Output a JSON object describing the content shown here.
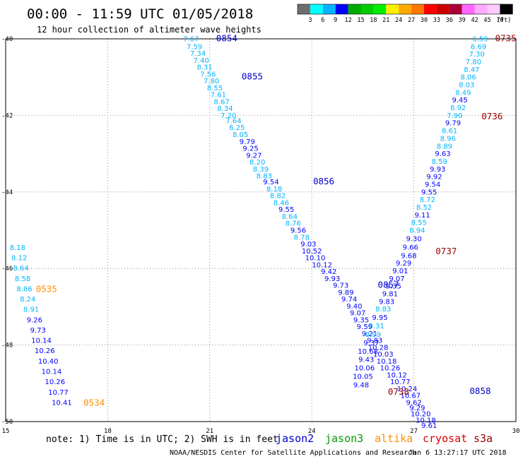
{
  "chart_data": {
    "type": "scatter",
    "title": "00:00 - 11:59 UTC 01/05/2018",
    "subtitle": "12 hour collection of altimeter wave heights",
    "note": "note: 1) Time is in UTC; 2) SWH is in feet",
    "credit": "NOAA/NESDIS Center for Satellite Applications and Research",
    "generated": "Jan  6 13:27:17 UTC 2018",
    "xlim": [
      15,
      30
    ],
    "ylim": [
      -50,
      -40
    ],
    "x_ticks": [
      "15",
      "18",
      "21",
      "24",
      "27",
      "30"
    ],
    "y_ticks": [
      "-40",
      "-42",
      "-44",
      "-46",
      "-48",
      "-50"
    ],
    "grid": true,
    "color_scale": {
      "unit": "(ft)",
      "labels": [
        "3",
        "6",
        "9",
        "12",
        "15",
        "18",
        "21",
        "24",
        "27",
        "30",
        "33",
        "36",
        "39",
        "42",
        "45",
        "70"
      ],
      "colors": [
        "#6e6e6e",
        "#00ffff",
        "#00b4ff",
        "#0000ff",
        "#00aa00",
        "#00cc00",
        "#00ee00",
        "#ffee00",
        "#ffaa00",
        "#ff7700",
        "#ff0000",
        "#cc0000",
        "#aa0033",
        "#ff66ff",
        "#ffaaff",
        "#ffccff",
        "#000000"
      ]
    },
    "legend": [
      {
        "name": "jason2",
        "color": "#0000cc"
      },
      {
        "name": "jason3",
        "color": "#009900"
      },
      {
        "name": "altika",
        "color": "#ff8c00"
      },
      {
        "name": "cryosat",
        "color": "#dd0000"
      },
      {
        "name": "s3a",
        "color": "#990000"
      }
    ],
    "passes": [
      {
        "name": "track-a",
        "points": [
          {
            "lon": 20.45,
            "lat": -40.0,
            "v": "7.67",
            "c": "#00b4ff"
          },
          {
            "lon": 20.55,
            "lat": -40.2,
            "v": "7.59",
            "c": "#00b4ff"
          },
          {
            "lon": 20.65,
            "lat": -40.38,
            "v": "7.34",
            "c": "#00b4ff"
          },
          {
            "lon": 20.75,
            "lat": -40.56,
            "v": "7.40",
            "c": "#00b4ff"
          },
          {
            "lon": 20.85,
            "lat": -40.74,
            "v": "8.31",
            "c": "#00b4ff"
          },
          {
            "lon": 20.95,
            "lat": -40.92,
            "v": "7.56",
            "c": "#00b4ff"
          },
          {
            "lon": 21.05,
            "lat": -41.1,
            "v": "7.80",
            "c": "#00b4ff"
          },
          {
            "lon": 21.15,
            "lat": -41.28,
            "v": "8.55",
            "c": "#00b4ff"
          },
          {
            "lon": 21.25,
            "lat": -41.46,
            "v": "7.61",
            "c": "#00b4ff"
          },
          {
            "lon": 21.35,
            "lat": -41.64,
            "v": "8.67",
            "c": "#00b4ff"
          },
          {
            "lon": 21.45,
            "lat": -41.82,
            "v": "8.34",
            "c": "#00b4ff"
          },
          {
            "lon": 21.55,
            "lat": -42.0,
            "v": "7.20",
            "c": "#00b4ff"
          },
          {
            "lon": 21.7,
            "lat": -42.14,
            "v": "7.64",
            "c": "#00b4ff"
          },
          {
            "lon": 21.8,
            "lat": -42.32,
            "v": "6.25",
            "c": "#00b4ff"
          },
          {
            "lon": 21.9,
            "lat": -42.5,
            "v": "8.05",
            "c": "#00b4ff"
          },
          {
            "lon": 22.1,
            "lat": -42.68,
            "v": "9.79",
            "c": "#0000ff"
          },
          {
            "lon": 22.2,
            "lat": -42.86,
            "v": "9.25",
            "c": "#0000ff"
          },
          {
            "lon": 22.3,
            "lat": -43.04,
            "v": "9.27",
            "c": "#0000ff"
          },
          {
            "lon": 22.4,
            "lat": -43.22,
            "v": "8.20",
            "c": "#00b4ff"
          },
          {
            "lon": 22.5,
            "lat": -43.4,
            "v": "8.39",
            "c": "#00b4ff"
          },
          {
            "lon": 22.6,
            "lat": -43.58,
            "v": "8.83",
            "c": "#00b4ff"
          },
          {
            "lon": 22.8,
            "lat": -43.74,
            "v": "9.54",
            "c": "#0000ff"
          },
          {
            "lon": 22.9,
            "lat": -43.92,
            "v": "8.18",
            "c": "#00b4ff"
          },
          {
            "lon": 23.0,
            "lat": -44.1,
            "v": "8.82",
            "c": "#00b4ff"
          },
          {
            "lon": 23.1,
            "lat": -44.28,
            "v": "8.46",
            "c": "#00b4ff"
          },
          {
            "lon": 23.25,
            "lat": -44.46,
            "v": "9.55",
            "c": "#0000ff"
          },
          {
            "lon": 23.35,
            "lat": -44.64,
            "v": "8.64",
            "c": "#00b4ff"
          },
          {
            "lon": 23.45,
            "lat": -44.82,
            "v": "8.76",
            "c": "#00b4ff"
          },
          {
            "lon": 23.6,
            "lat": -45.0,
            "v": "9.56",
            "c": "#0000ff"
          },
          {
            "lon": 23.7,
            "lat": -45.18,
            "v": "8.78",
            "c": "#00b4ff"
          },
          {
            "lon": 23.9,
            "lat": -45.36,
            "v": "9.03",
            "c": "#0000ff"
          },
          {
            "lon": 24.0,
            "lat": -45.54,
            "v": "10.52",
            "c": "#0000ff"
          },
          {
            "lon": 24.1,
            "lat": -45.72,
            "v": "10.10",
            "c": "#0000ff"
          },
          {
            "lon": 24.3,
            "lat": -45.9,
            "v": "10.12",
            "c": "#0000ff"
          },
          {
            "lon": 24.5,
            "lat": -46.08,
            "v": "9.42",
            "c": "#0000ff"
          },
          {
            "lon": 24.6,
            "lat": -46.26,
            "v": "9.93",
            "c": "#0000ff"
          },
          {
            "lon": 24.85,
            "lat": -46.44,
            "v": "9.73",
            "c": "#0000ff"
          },
          {
            "lon": 25.0,
            "lat": -46.62,
            "v": "9.89",
            "c": "#0000ff"
          },
          {
            "lon": 25.1,
            "lat": -46.8,
            "v": "9.74",
            "c": "#0000ff"
          },
          {
            "lon": 25.25,
            "lat": -46.98,
            "v": "9.40",
            "c": "#0000ff"
          },
          {
            "lon": 25.35,
            "lat": -47.16,
            "v": "9.07",
            "c": "#0000ff"
          },
          {
            "lon": 25.45,
            "lat": -47.34,
            "v": "9.35",
            "c": "#0000ff"
          },
          {
            "lon": 25.55,
            "lat": -47.52,
            "v": "9.59",
            "c": "#0000ff"
          },
          {
            "lon": 25.7,
            "lat": -47.7,
            "v": "9.21",
            "c": "#0000ff"
          },
          {
            "lon": 25.85,
            "lat": -47.88,
            "v": "9.83",
            "c": "#0000ff"
          },
          {
            "lon": 25.95,
            "lat": -48.06,
            "v": "10.28",
            "c": "#0000ff"
          },
          {
            "lon": 26.1,
            "lat": -48.24,
            "v": "10.03",
            "c": "#0000ff"
          },
          {
            "lon": 26.2,
            "lat": -48.42,
            "v": "10.18",
            "c": "#0000ff"
          },
          {
            "lon": 26.3,
            "lat": -48.6,
            "v": "10.26",
            "c": "#0000ff"
          },
          {
            "lon": 26.5,
            "lat": -48.78,
            "v": "10.12",
            "c": "#0000ff"
          },
          {
            "lon": 26.6,
            "lat": -48.96,
            "v": "10.77",
            "c": "#0000ff"
          },
          {
            "lon": 26.8,
            "lat": -49.14,
            "v": "10.24",
            "c": "#0000ff"
          },
          {
            "lon": 26.9,
            "lat": -49.32,
            "v": "10.67",
            "c": "#0000ff"
          },
          {
            "lon": 27.0,
            "lat": -49.5,
            "v": "9.62",
            "c": "#0000ff"
          },
          {
            "lon": 27.1,
            "lat": -49.64,
            "v": "9.29",
            "c": "#0000ff"
          },
          {
            "lon": 27.2,
            "lat": -49.8,
            "v": "10.20",
            "c": "#0000ff"
          },
          {
            "lon": 27.35,
            "lat": -49.96,
            "v": "10.18",
            "c": "#0000ff"
          },
          {
            "lon": 27.45,
            "lat": -50.1,
            "v": "9.61",
            "c": "#0000ff"
          }
        ]
      },
      {
        "name": "track-b",
        "points": [
          {
            "lon": 28.95,
            "lat": -40.0,
            "v": "6.59",
            "c": "#00b4ff"
          },
          {
            "lon": 28.9,
            "lat": -40.2,
            "v": "6.69",
            "c": "#00b4ff"
          },
          {
            "lon": 28.85,
            "lat": -40.4,
            "v": "7.30",
            "c": "#00b4ff"
          },
          {
            "lon": 28.75,
            "lat": -40.6,
            "v": "7.80",
            "c": "#00b4ff"
          },
          {
            "lon": 28.7,
            "lat": -40.8,
            "v": "8.47",
            "c": "#00b4ff"
          },
          {
            "lon": 28.6,
            "lat": -41.0,
            "v": "8.06",
            "c": "#00b4ff"
          },
          {
            "lon": 28.55,
            "lat": -41.2,
            "v": "8.03",
            "c": "#00b4ff"
          },
          {
            "lon": 28.45,
            "lat": -41.4,
            "v": "8.49",
            "c": "#00b4ff"
          },
          {
            "lon": 28.35,
            "lat": -41.6,
            "v": "9.45",
            "c": "#0000ff"
          },
          {
            "lon": 28.3,
            "lat": -41.8,
            "v": "8.92",
            "c": "#00b4ff"
          },
          {
            "lon": 28.2,
            "lat": -42.0,
            "v": "7.90",
            "c": "#00b4ff"
          },
          {
            "lon": 28.15,
            "lat": -42.2,
            "v": "9.79",
            "c": "#0000ff"
          },
          {
            "lon": 28.05,
            "lat": -42.4,
            "v": "8.61",
            "c": "#00b4ff"
          },
          {
            "lon": 28.0,
            "lat": -42.6,
            "v": "8.96",
            "c": "#00b4ff"
          },
          {
            "lon": 27.9,
            "lat": -42.8,
            "v": "8.89",
            "c": "#00b4ff"
          },
          {
            "lon": 27.85,
            "lat": -43.0,
            "v": "9.63",
            "c": "#0000ff"
          },
          {
            "lon": 27.75,
            "lat": -43.2,
            "v": "8.59",
            "c": "#00b4ff"
          },
          {
            "lon": 27.7,
            "lat": -43.4,
            "v": "9.93",
            "c": "#0000ff"
          },
          {
            "lon": 27.6,
            "lat": -43.6,
            "v": "9.92",
            "c": "#0000ff"
          },
          {
            "lon": 27.55,
            "lat": -43.8,
            "v": "9.54",
            "c": "#0000ff"
          },
          {
            "lon": 27.45,
            "lat": -44.0,
            "v": "9.55",
            "c": "#0000ff"
          },
          {
            "lon": 27.4,
            "lat": -44.2,
            "v": "8.72",
            "c": "#00b4ff"
          },
          {
            "lon": 27.3,
            "lat": -44.4,
            "v": "8.52",
            "c": "#00b4ff"
          },
          {
            "lon": 27.25,
            "lat": -44.6,
            "v": "9.11",
            "c": "#0000ff"
          },
          {
            "lon": 27.15,
            "lat": -44.8,
            "v": "8.55",
            "c": "#00b4ff"
          },
          {
            "lon": 27.1,
            "lat": -45.0,
            "v": "8.94",
            "c": "#00b4ff"
          },
          {
            "lon": 27.0,
            "lat": -45.22,
            "v": "9.30",
            "c": "#0000ff"
          },
          {
            "lon": 26.9,
            "lat": -45.44,
            "v": "9.66",
            "c": "#0000ff"
          },
          {
            "lon": 26.85,
            "lat": -45.66,
            "v": "9.68",
            "c": "#0000ff"
          },
          {
            "lon": 26.7,
            "lat": -45.86,
            "v": "9.29",
            "c": "#0000ff"
          },
          {
            "lon": 26.6,
            "lat": -46.06,
            "v": "9.01",
            "c": "#0000ff"
          },
          {
            "lon": 26.5,
            "lat": -46.26,
            "v": "9.07",
            "c": "#0000ff"
          },
          {
            "lon": 26.4,
            "lat": -46.46,
            "v": "9.35",
            "c": "#0000ff"
          },
          {
            "lon": 26.3,
            "lat": -46.66,
            "v": "9.81",
            "c": "#0000ff"
          },
          {
            "lon": 26.2,
            "lat": -46.86,
            "v": "9.83",
            "c": "#0000ff"
          },
          {
            "lon": 26.1,
            "lat": -47.06,
            "v": "8.83",
            "c": "#00b4ff"
          },
          {
            "lon": 26.0,
            "lat": -47.28,
            "v": "9.95",
            "c": "#0000ff"
          },
          {
            "lon": 25.9,
            "lat": -47.5,
            "v": "8.31",
            "c": "#00b4ff"
          },
          {
            "lon": 25.8,
            "lat": -47.72,
            "v": "8.99",
            "c": "#00b4ff"
          },
          {
            "lon": 25.75,
            "lat": -47.94,
            "v": "9.37",
            "c": "#0000ff"
          },
          {
            "lon": 25.65,
            "lat": -48.16,
            "v": "10.68",
            "c": "#0000ff"
          },
          {
            "lon": 25.6,
            "lat": -48.38,
            "v": "9.43",
            "c": "#0000ff"
          },
          {
            "lon": 25.55,
            "lat": -48.6,
            "v": "10.06",
            "c": "#0000ff"
          },
          {
            "lon": 25.5,
            "lat": -48.82,
            "v": "10.05",
            "c": "#0000ff"
          },
          {
            "lon": 25.45,
            "lat": -49.04,
            "v": "9.48",
            "c": "#0000ff"
          }
        ]
      },
      {
        "name": "track-c",
        "points": [
          {
            "lon": 15.35,
            "lat": -45.45,
            "v": "8.18",
            "c": "#00b4ff"
          },
          {
            "lon": 15.4,
            "lat": -45.72,
            "v": "8.12",
            "c": "#00b4ff"
          },
          {
            "lon": 15.45,
            "lat": -45.99,
            "v": "8.64",
            "c": "#00b4ff"
          },
          {
            "lon": 15.5,
            "lat": -46.26,
            "v": "8.58",
            "c": "#00b4ff"
          },
          {
            "lon": 15.55,
            "lat": -46.53,
            "v": "8.86",
            "c": "#00b4ff"
          },
          {
            "lon": 15.65,
            "lat": -46.8,
            "v": "8.24",
            "c": "#00b4ff"
          },
          {
            "lon": 15.75,
            "lat": -47.07,
            "v": "8.91",
            "c": "#00b4ff"
          },
          {
            "lon": 15.85,
            "lat": -47.34,
            "v": "9.26",
            "c": "#0000ff"
          },
          {
            "lon": 15.95,
            "lat": -47.61,
            "v": "9.73",
            "c": "#0000ff"
          },
          {
            "lon": 16.05,
            "lat": -47.88,
            "v": "10.14",
            "c": "#0000ff"
          },
          {
            "lon": 16.15,
            "lat": -48.15,
            "v": "10.26",
            "c": "#0000ff"
          },
          {
            "lon": 16.25,
            "lat": -48.42,
            "v": "10.40",
            "c": "#0000ff"
          },
          {
            "lon": 16.35,
            "lat": -48.69,
            "v": "10.14",
            "c": "#0000ff"
          },
          {
            "lon": 16.45,
            "lat": -48.96,
            "v": "10.26",
            "c": "#0000ff"
          },
          {
            "lon": 16.55,
            "lat": -49.23,
            "v": "10.77",
            "c": "#0000ff"
          },
          {
            "lon": 16.65,
            "lat": -49.5,
            "v": "10.41",
            "c": "#0000ff"
          }
        ]
      }
    ],
    "time_labels": [
      {
        "text": "0854",
        "lon": 21.5,
        "lat": -39.98,
        "c": "#0000cc"
      },
      {
        "text": "0855",
        "lon": 22.25,
        "lat": -40.98,
        "c": "#0000cc"
      },
      {
        "text": "0856",
        "lon": 24.35,
        "lat": -43.72,
        "c": "#0000cc"
      },
      {
        "text": "0857",
        "lon": 26.25,
        "lat": -46.42,
        "c": "#0000cc"
      },
      {
        "text": "0858",
        "lon": 28.95,
        "lat": -49.2,
        "c": "#0000cc"
      },
      {
        "text": "0735",
        "lon": 29.7,
        "lat": -39.98,
        "c": "#990000"
      },
      {
        "text": "0736",
        "lon": 29.3,
        "lat": -42.02,
        "c": "#990000"
      },
      {
        "text": "0737",
        "lon": 27.95,
        "lat": -45.54,
        "c": "#990000"
      },
      {
        "text": "0738",
        "lon": 26.55,
        "lat": -49.22,
        "c": "#990000"
      },
      {
        "text": "0535",
        "lon": 16.2,
        "lat": -46.53,
        "c": "#ff8c00"
      },
      {
        "text": "0534",
        "lon": 17.6,
        "lat": -49.5,
        "c": "#ff8c00"
      }
    ]
  }
}
